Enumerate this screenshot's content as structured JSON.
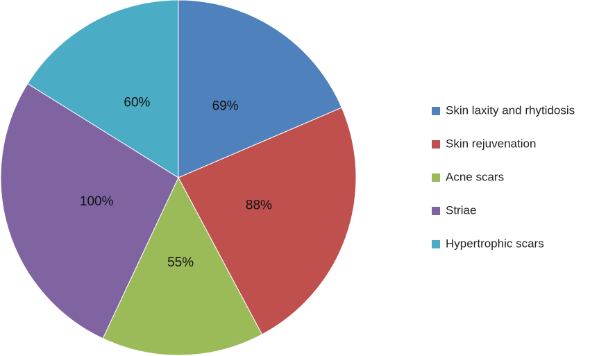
{
  "chart_data": {
    "type": "pie",
    "title": "",
    "start_angle_deg": 90,
    "direction": "clockwise",
    "legend_position": "right",
    "categories": [
      "Skin laxity and rhytidosis",
      "Skin rejuvenation",
      "Acne scars",
      "Striae",
      "Hypertrophic scars"
    ],
    "values": [
      69,
      88,
      55,
      100,
      60
    ],
    "labels": [
      "69%",
      "88%",
      "55%",
      "100%",
      "60%"
    ],
    "colors": [
      "#4f81bd",
      "#c0504d",
      "#9bbb59",
      "#8064a2",
      "#4bacc6"
    ]
  }
}
